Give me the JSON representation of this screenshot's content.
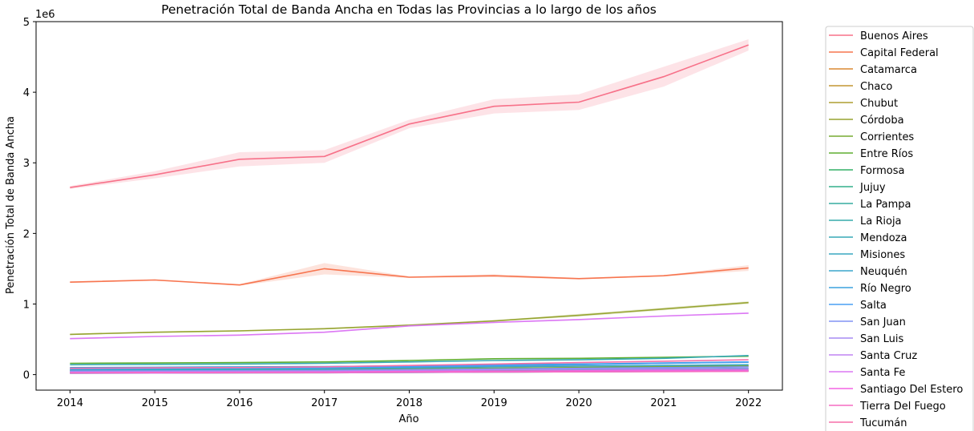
{
  "chart_data": {
    "type": "line",
    "title": "Penetración Total de Banda Ancha en Todas las Provincias a lo largo de los años",
    "xlabel": "Año",
    "ylabel": "Penetración Total de Banda Ancha",
    "y_multiplier_label": "1e6",
    "x": [
      2014,
      2015,
      2016,
      2017,
      2018,
      2019,
      2020,
      2021,
      2022
    ],
    "ylim": [
      -0.22,
      5.0
    ],
    "yticks": [
      0,
      1,
      2,
      3,
      4,
      5
    ],
    "grid": false,
    "legend_position": "outside-right",
    "series": [
      {
        "name": "Buenos Aires",
        "color": "#f77189",
        "values": [
          2.65,
          2.83,
          3.05,
          3.09,
          3.55,
          3.8,
          3.86,
          4.22,
          4.67
        ],
        "band": [
          0.02,
          0.05,
          0.1,
          0.09,
          0.06,
          0.1,
          0.11,
          0.14,
          0.08
        ]
      },
      {
        "name": "Capital Federal",
        "color": "#f7754f",
        "values": [
          1.31,
          1.34,
          1.27,
          1.5,
          1.38,
          1.4,
          1.36,
          1.4,
          1.51
        ],
        "band": [
          0.01,
          0.01,
          0.01,
          0.08,
          0.01,
          0.02,
          0.01,
          0.01,
          0.04
        ]
      },
      {
        "name": "Catamarca",
        "color": "#dc8932",
        "values": [
          0.03,
          0.032,
          0.034,
          0.036,
          0.04,
          0.045,
          0.05,
          0.055,
          0.06
        ],
        "band": []
      },
      {
        "name": "Chaco",
        "color": "#c39532",
        "values": [
          0.06,
          0.064,
          0.068,
          0.072,
          0.08,
          0.09,
          0.1,
          0.11,
          0.12
        ],
        "band": []
      },
      {
        "name": "Chubut",
        "color": "#ae9d31",
        "values": [
          0.09,
          0.095,
          0.1,
          0.105,
          0.11,
          0.115,
          0.12,
          0.125,
          0.13
        ],
        "band": []
      },
      {
        "name": "Córdoba",
        "color": "#97a431",
        "values": [
          0.57,
          0.6,
          0.62,
          0.65,
          0.7,
          0.76,
          0.84,
          0.93,
          1.02
        ],
        "band": [
          0.01,
          0.01,
          0.01,
          0.01,
          0.01,
          0.01,
          0.02,
          0.02,
          0.02
        ]
      },
      {
        "name": "Corrientes",
        "color": "#77ab31",
        "values": [
          0.06,
          0.063,
          0.067,
          0.07,
          0.08,
          0.09,
          0.1,
          0.11,
          0.12
        ],
        "band": []
      },
      {
        "name": "Entre Ríos",
        "color": "#5fae30",
        "values": [
          0.16,
          0.165,
          0.17,
          0.18,
          0.2,
          0.225,
          0.23,
          0.245,
          0.26
        ],
        "band": []
      },
      {
        "name": "Formosa",
        "color": "#32b166",
        "values": [
          0.02,
          0.022,
          0.024,
          0.026,
          0.03,
          0.035,
          0.04,
          0.045,
          0.05
        ],
        "band": []
      },
      {
        "name": "Jujuy",
        "color": "#34af8a",
        "values": [
          0.04,
          0.042,
          0.045,
          0.048,
          0.055,
          0.06,
          0.065,
          0.07,
          0.075
        ],
        "band": []
      },
      {
        "name": "La Pampa",
        "color": "#35ac9f",
        "values": [
          0.06,
          0.062,
          0.064,
          0.066,
          0.07,
          0.075,
          0.08,
          0.085,
          0.09
        ],
        "band": []
      },
      {
        "name": "La Rioja",
        "color": "#36abab",
        "values": [
          0.025,
          0.027,
          0.029,
          0.031,
          0.035,
          0.04,
          0.045,
          0.05,
          0.055
        ],
        "band": []
      },
      {
        "name": "Mendoza",
        "color": "#37a9b5",
        "values": [
          0.14,
          0.145,
          0.15,
          0.16,
          0.18,
          0.2,
          0.21,
          0.23,
          0.27
        ],
        "band": []
      },
      {
        "name": "Misiones",
        "color": "#38a7c0",
        "values": [
          0.07,
          0.075,
          0.08,
          0.085,
          0.095,
          0.11,
          0.12,
          0.13,
          0.14
        ],
        "band": []
      },
      {
        "name": "Neuquén",
        "color": "#3aa5cc",
        "values": [
          0.09,
          0.095,
          0.1,
          0.11,
          0.12,
          0.135,
          0.145,
          0.16,
          0.175
        ],
        "band": []
      },
      {
        "name": "Río Negro",
        "color": "#3ba2dd",
        "values": [
          0.1,
          0.105,
          0.11,
          0.115,
          0.125,
          0.14,
          0.15,
          0.165,
          0.18
        ],
        "band": []
      },
      {
        "name": "Salta",
        "color": "#499ff4",
        "values": [
          0.08,
          0.085,
          0.09,
          0.095,
          0.11,
          0.125,
          0.14,
          0.16,
          0.18
        ],
        "band": []
      },
      {
        "name": "San Juan",
        "color": "#8293f4",
        "values": [
          0.05,
          0.053,
          0.056,
          0.06,
          0.07,
          0.08,
          0.09,
          0.1,
          0.11
        ],
        "band": []
      },
      {
        "name": "San Luis",
        "color": "#a68cf4",
        "values": [
          0.04,
          0.043,
          0.046,
          0.05,
          0.06,
          0.07,
          0.075,
          0.08,
          0.085
        ],
        "band": []
      },
      {
        "name": "Santa Cruz",
        "color": "#c184f4",
        "values": [
          0.02,
          0.022,
          0.024,
          0.026,
          0.03,
          0.035,
          0.04,
          0.045,
          0.05
        ],
        "band": []
      },
      {
        "name": "Santa Fe",
        "color": "#dc79f4",
        "values": [
          0.51,
          0.54,
          0.56,
          0.6,
          0.69,
          0.74,
          0.78,
          0.83,
          0.87
        ],
        "band": [
          0.01,
          0.01,
          0.01,
          0.01,
          0.01,
          0.01,
          0.01,
          0.01,
          0.01
        ]
      },
      {
        "name": "Santiago Del Estero",
        "color": "#f463e3",
        "values": [
          0.03,
          0.032,
          0.035,
          0.038,
          0.045,
          0.05,
          0.055,
          0.06,
          0.065
        ],
        "band": []
      },
      {
        "name": "Tierra Del Fuego",
        "color": "#f56bc2",
        "values": [
          0.025,
          0.027,
          0.029,
          0.031,
          0.035,
          0.038,
          0.04,
          0.042,
          0.045
        ],
        "band": []
      },
      {
        "name": "Tucumán",
        "color": "#f66fa8",
        "values": [
          0.09,
          0.095,
          0.1,
          0.11,
          0.13,
          0.15,
          0.17,
          0.19,
          0.21
        ],
        "band": []
      }
    ]
  }
}
